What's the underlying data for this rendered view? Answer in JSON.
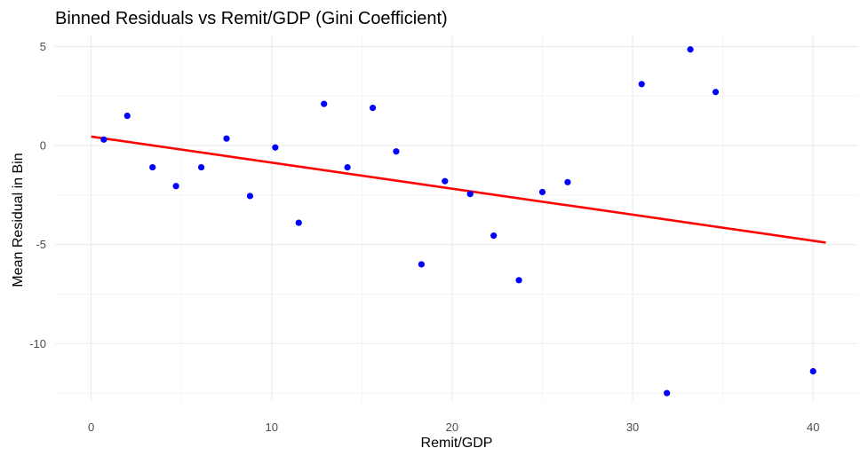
{
  "chart_data": {
    "type": "scatter",
    "title": "Binned Residuals vs Remit/GDP (Gini Coefficient)",
    "xlabel": "Remit/GDP",
    "ylabel": "Mean Residual in Bin",
    "xlim": [
      -2,
      42.5
    ],
    "ylim": [
      -12.9,
      5.6
    ],
    "x_ticks": [
      0,
      10,
      20,
      30,
      40
    ],
    "y_ticks": [
      5,
      0,
      -5,
      -10
    ],
    "x_minor": [
      5,
      15,
      25,
      35
    ],
    "y_minor": [
      2.5,
      -2.5,
      -7.5,
      -12.5
    ],
    "grid": true,
    "point_color": "#0000FF",
    "line_color": "#FF0000",
    "points": [
      {
        "x": 0.7,
        "y": 0.3
      },
      {
        "x": 2.0,
        "y": 1.5
      },
      {
        "x": 3.4,
        "y": -1.1
      },
      {
        "x": 4.7,
        "y": -2.05
      },
      {
        "x": 6.1,
        "y": -1.1
      },
      {
        "x": 7.5,
        "y": 0.35
      },
      {
        "x": 8.8,
        "y": -2.55
      },
      {
        "x": 10.2,
        "y": -0.1
      },
      {
        "x": 11.5,
        "y": -3.9
      },
      {
        "x": 12.9,
        "y": 2.1
      },
      {
        "x": 14.2,
        "y": -1.1
      },
      {
        "x": 15.6,
        "y": 1.9
      },
      {
        "x": 16.9,
        "y": -0.3
      },
      {
        "x": 18.3,
        "y": -6.0
      },
      {
        "x": 19.6,
        "y": -1.8
      },
      {
        "x": 21.0,
        "y": -2.45
      },
      {
        "x": 22.3,
        "y": -4.55
      },
      {
        "x": 23.7,
        "y": -6.8
      },
      {
        "x": 25.0,
        "y": -2.35
      },
      {
        "x": 26.4,
        "y": -1.85
      },
      {
        "x": 30.5,
        "y": 3.1
      },
      {
        "x": 31.9,
        "y": -12.5
      },
      {
        "x": 33.2,
        "y": 4.85
      },
      {
        "x": 34.6,
        "y": 2.7
      },
      {
        "x": 40.0,
        "y": -11.4
      }
    ],
    "trend_line": {
      "x": [
        0,
        40.7
      ],
      "y": [
        0.45,
        -4.9
      ]
    }
  }
}
